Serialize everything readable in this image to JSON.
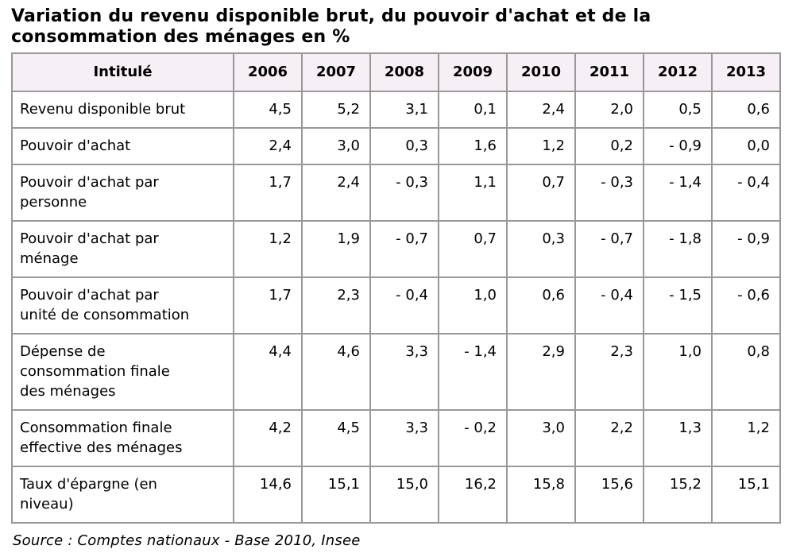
{
  "title": "Variation du revenu disponible brut, du pouvoir d'achat et de la\nconsommation des ménages en %",
  "table": {
    "header": {
      "label_column": "Intitulé",
      "years": [
        "2006",
        "2007",
        "2008",
        "2009",
        "2010",
        "2011",
        "2012",
        "2013"
      ]
    },
    "rows": [
      {
        "label": "Revenu disponible brut",
        "values": [
          "4,5",
          "5,2",
          "3,1",
          "0,1",
          "2,4",
          "2,0",
          "0,5",
          "0,6"
        ]
      },
      {
        "label": "Pouvoir d'achat",
        "values": [
          "2,4",
          "3,0",
          "0,3",
          "1,6",
          "1,2",
          "0,2",
          "- 0,9",
          "0,0"
        ]
      },
      {
        "label": "Pouvoir d'achat par\npersonne",
        "values": [
          "1,7",
          "2,4",
          "- 0,3",
          "1,1",
          "0,7",
          "- 0,3",
          "- 1,4",
          "- 0,4"
        ]
      },
      {
        "label": "Pouvoir d'achat par\nménage",
        "values": [
          "1,2",
          "1,9",
          "- 0,7",
          "0,7",
          "0,3",
          "- 0,7",
          "- 1,8",
          "- 0,9"
        ]
      },
      {
        "label": "Pouvoir d'achat par\nunité de consommation",
        "values": [
          "1,7",
          "2,3",
          "- 0,4",
          "1,0",
          "0,6",
          "- 0,4",
          "- 1,5",
          "- 0,6"
        ]
      },
      {
        "label": "Dépense de\nconsommation finale\ndes ménages",
        "values": [
          "4,4",
          "4,6",
          "3,3",
          "- 1,4",
          "2,9",
          "2,3",
          "1,0",
          "0,8"
        ]
      },
      {
        "label": "Consommation finale\neffective des ménages",
        "values": [
          "4,2",
          "4,5",
          "3,3",
          "- 0,2",
          "3,0",
          "2,2",
          "1,3",
          "1,2"
        ]
      },
      {
        "label": "Taux d'épargne (en\nniveau)",
        "values": [
          "14,6",
          "15,1",
          "15,0",
          "16,2",
          "15,8",
          "15,6",
          "15,2",
          "15,1"
        ]
      }
    ]
  },
  "source": "Source : Comptes nationaux - Base 2010, Insee",
  "colors": {
    "header_bg": "#f6eff6",
    "inner_border": "#989898",
    "outer_border": "#7d7d7d",
    "text": "#000000",
    "background": "#ffffff"
  },
  "chart_data": {
    "type": "table",
    "title": "Variation du revenu disponible brut, du pouvoir d'achat et de la consommation des ménages en %",
    "categories": [
      2006,
      2007,
      2008,
      2009,
      2010,
      2011,
      2012,
      2013
    ],
    "series": [
      {
        "name": "Revenu disponible brut",
        "values": [
          4.5,
          5.2,
          3.1,
          0.1,
          2.4,
          2.0,
          0.5,
          0.6
        ]
      },
      {
        "name": "Pouvoir d'achat",
        "values": [
          2.4,
          3.0,
          0.3,
          1.6,
          1.2,
          0.2,
          -0.9,
          0.0
        ]
      },
      {
        "name": "Pouvoir d'achat par personne",
        "values": [
          1.7,
          2.4,
          -0.3,
          1.1,
          0.7,
          -0.3,
          -1.4,
          -0.4
        ]
      },
      {
        "name": "Pouvoir d'achat par ménage",
        "values": [
          1.2,
          1.9,
          -0.7,
          0.7,
          0.3,
          -0.7,
          -1.8,
          -0.9
        ]
      },
      {
        "name": "Pouvoir d'achat par unité de consommation",
        "values": [
          1.7,
          2.3,
          -0.4,
          1.0,
          0.6,
          -0.4,
          -1.5,
          -0.6
        ]
      },
      {
        "name": "Dépense de consommation finale des ménages",
        "values": [
          4.4,
          4.6,
          3.3,
          -1.4,
          2.9,
          2.3,
          1.0,
          0.8
        ]
      },
      {
        "name": "Consommation finale effective des ménages",
        "values": [
          4.2,
          4.5,
          3.3,
          -0.2,
          3.0,
          2.2,
          1.3,
          1.2
        ]
      },
      {
        "name": "Taux d'épargne (en niveau)",
        "values": [
          14.6,
          15.1,
          15.0,
          16.2,
          15.8,
          15.6,
          15.2,
          15.1
        ]
      }
    ],
    "unit": "%",
    "source": "Source : Comptes nationaux - Base 2010, Insee"
  }
}
